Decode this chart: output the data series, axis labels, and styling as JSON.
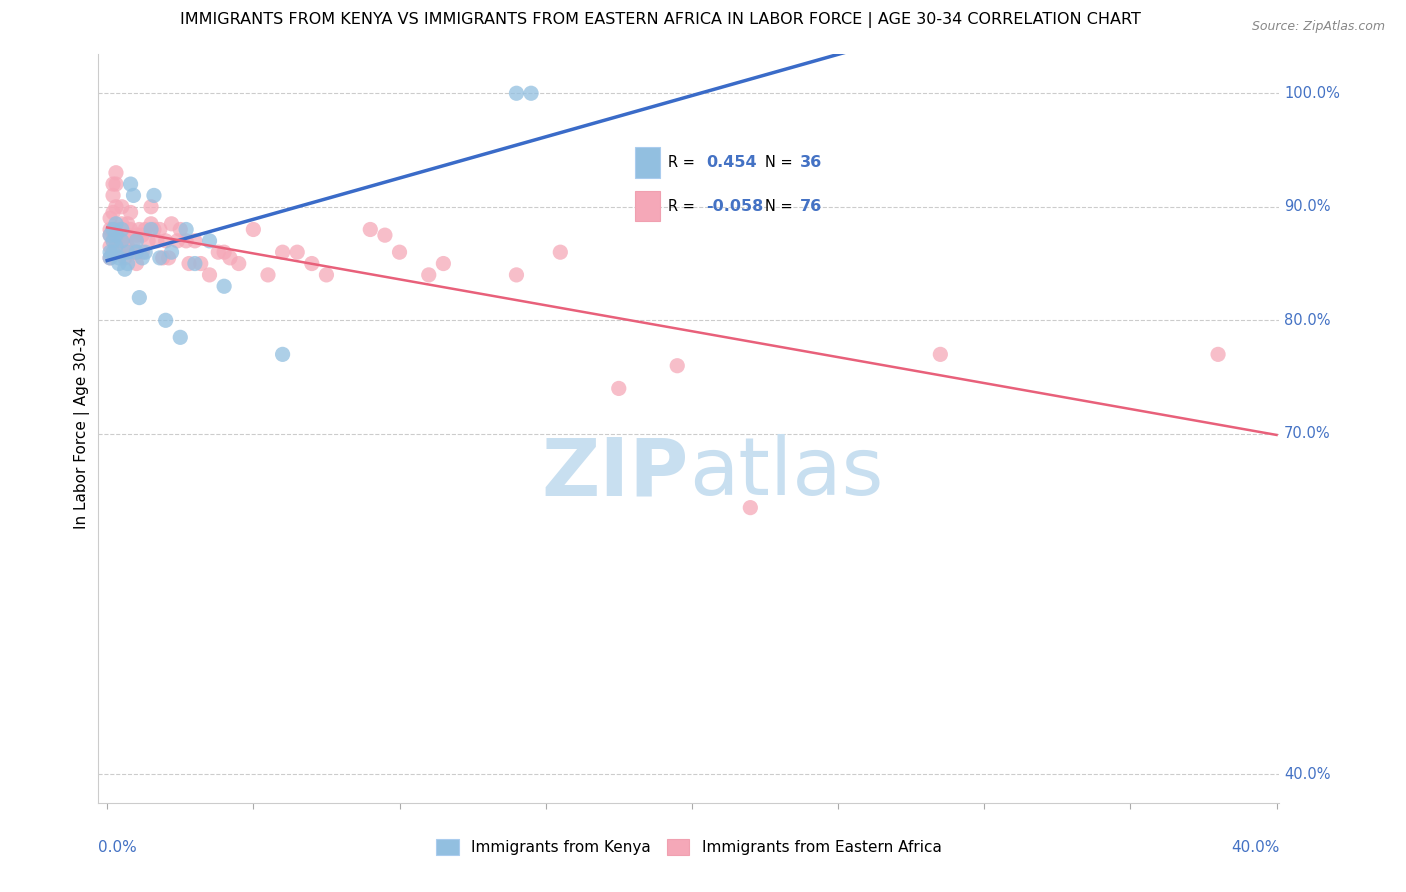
{
  "title": "IMMIGRANTS FROM KENYA VS IMMIGRANTS FROM EASTERN AFRICA IN LABOR FORCE | AGE 30-34 CORRELATION CHART",
  "source": "Source: ZipAtlas.com",
  "ylabel": "In Labor Force | Age 30-34",
  "legend_kenya": "Immigrants from Kenya",
  "legend_eastern": "Immigrants from Eastern Africa",
  "r_kenya": 0.454,
  "n_kenya": 36,
  "r_eastern": -0.058,
  "n_eastern": 76,
  "kenya_color": "#92bfe0",
  "eastern_color": "#f5a8b8",
  "kenya_line_color": "#3a6bc8",
  "eastern_line_color": "#e8607a",
  "background_color": "#ffffff",
  "xlim_min": -0.003,
  "xlim_max": 0.401,
  "ylim_min": 0.375,
  "ylim_max": 1.035,
  "right_yticks": [
    1.0,
    0.9,
    0.8,
    0.7,
    0.4
  ],
  "right_ylabels": [
    "100.0%",
    "90.0%",
    "80.0%",
    "70.0%",
    "40.0%"
  ],
  "kenya_x": [
    0.001,
    0.001,
    0.001,
    0.002,
    0.002,
    0.002,
    0.003,
    0.003,
    0.003,
    0.004,
    0.004,
    0.005,
    0.005,
    0.006,
    0.007,
    0.007,
    0.008,
    0.009,
    0.01,
    0.01,
    0.011,
    0.012,
    0.013,
    0.015,
    0.016,
    0.018,
    0.02,
    0.022,
    0.025,
    0.027,
    0.03,
    0.035,
    0.04,
    0.06,
    0.14,
    0.145
  ],
  "kenya_y": [
    0.875,
    0.86,
    0.855,
    0.88,
    0.87,
    0.86,
    0.885,
    0.875,
    0.865,
    0.855,
    0.85,
    0.88,
    0.87,
    0.845,
    0.86,
    0.85,
    0.92,
    0.91,
    0.87,
    0.86,
    0.82,
    0.855,
    0.86,
    0.88,
    0.91,
    0.855,
    0.8,
    0.86,
    0.785,
    0.88,
    0.85,
    0.87,
    0.83,
    0.77,
    1.0,
    1.0
  ],
  "eastern_x": [
    0.001,
    0.001,
    0.001,
    0.001,
    0.001,
    0.002,
    0.002,
    0.002,
    0.002,
    0.002,
    0.003,
    0.003,
    0.003,
    0.003,
    0.004,
    0.004,
    0.004,
    0.005,
    0.005,
    0.005,
    0.006,
    0.006,
    0.006,
    0.007,
    0.007,
    0.007,
    0.008,
    0.008,
    0.009,
    0.009,
    0.01,
    0.01,
    0.01,
    0.011,
    0.012,
    0.012,
    0.013,
    0.014,
    0.015,
    0.015,
    0.016,
    0.017,
    0.018,
    0.019,
    0.02,
    0.021,
    0.022,
    0.024,
    0.025,
    0.027,
    0.028,
    0.03,
    0.032,
    0.035,
    0.038,
    0.04,
    0.042,
    0.045,
    0.05,
    0.055,
    0.06,
    0.065,
    0.07,
    0.075,
    0.09,
    0.095,
    0.1,
    0.11,
    0.115,
    0.14,
    0.155,
    0.175,
    0.195,
    0.22,
    0.285,
    0.38
  ],
  "eastern_y": [
    0.89,
    0.88,
    0.875,
    0.865,
    0.855,
    0.92,
    0.91,
    0.895,
    0.88,
    0.87,
    0.93,
    0.92,
    0.9,
    0.88,
    0.88,
    0.87,
    0.86,
    0.9,
    0.885,
    0.875,
    0.875,
    0.865,
    0.855,
    0.885,
    0.875,
    0.865,
    0.895,
    0.88,
    0.87,
    0.86,
    0.875,
    0.86,
    0.85,
    0.88,
    0.875,
    0.86,
    0.88,
    0.87,
    0.9,
    0.885,
    0.88,
    0.87,
    0.88,
    0.855,
    0.87,
    0.855,
    0.885,
    0.87,
    0.88,
    0.87,
    0.85,
    0.87,
    0.85,
    0.84,
    0.86,
    0.86,
    0.855,
    0.85,
    0.88,
    0.84,
    0.86,
    0.86,
    0.85,
    0.84,
    0.88,
    0.875,
    0.86,
    0.84,
    0.85,
    0.84,
    0.86,
    0.74,
    0.76,
    0.635,
    0.77,
    0.77
  ],
  "watermark_zip": "ZIP",
  "watermark_atlas": "atlas",
  "watermark_color": "#c8dff0"
}
